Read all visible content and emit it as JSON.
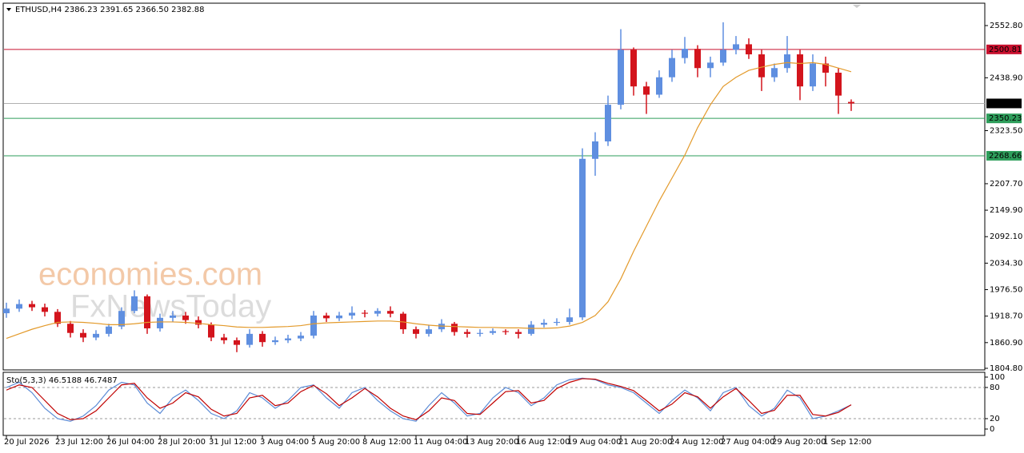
{
  "chart_data": [
    {
      "type": "candlestick",
      "title": "ETHUSD,H4  2386.23 2391.65 2366.50 2382.88",
      "watermark": [
        "economies.com",
        "FxNewsToday"
      ],
      "categories": [
        "20 Jul 2026",
        null,
        null,
        null,
        "23 Jul 12:00",
        null,
        null,
        null,
        "26 Jul 04:00",
        null,
        null,
        null,
        "28 Jul 20:00",
        null,
        null,
        null,
        "31 Jul 12:00",
        null,
        null,
        null,
        "3 Aug 04:00",
        null,
        null,
        null,
        "5 Aug 20:00",
        null,
        null,
        null,
        "8 Aug 12:00",
        null,
        null,
        null,
        "11 Aug 04:00",
        null,
        null,
        null,
        "13 Aug 20:00",
        null,
        null,
        null,
        "16 Aug 12:00",
        null,
        null,
        null,
        "19 Aug 04:00",
        null,
        null,
        null,
        "21 Aug 20:00",
        null,
        null,
        null,
        "24 Aug 12:00",
        null,
        null,
        null,
        "27 Aug 04:00",
        null,
        null,
        null,
        "29 Aug 20:00",
        null,
        null,
        null,
        "1 Sep 12:00",
        null,
        null
      ],
      "open": [
        1925,
        1935,
        1945,
        1938,
        1928,
        1902,
        1882,
        1872,
        1880,
        1896,
        1930,
        1962,
        1892,
        1915,
        1920,
        1910,
        1900,
        1872,
        1866,
        1856,
        1880,
        1862,
        1866,
        1870,
        1876,
        1920,
        1914,
        1920,
        1926,
        1924,
        1930,
        1924,
        1890,
        1880,
        1890,
        1902,
        1884,
        1880,
        1882,
        1886,
        1884,
        1880,
        1900,
        1904,
        1906,
        1916,
        2262,
        2300,
        2380,
        2500,
        2420,
        2402,
        2440,
        2482,
        2502,
        2460,
        2472,
        2500,
        2512,
        2490,
        2440,
        2460,
        2490,
        2420,
        2470,
        2450,
        2386.23
      ],
      "high": [
        1948,
        1955,
        1952,
        1946,
        1934,
        1908,
        1890,
        1888,
        1902,
        1938,
        1975,
        1966,
        1924,
        1930,
        1928,
        1918,
        1905,
        1880,
        1872,
        1890,
        1886,
        1874,
        1878,
        1884,
        1930,
        1926,
        1928,
        1940,
        1932,
        1936,
        1940,
        1928,
        1896,
        1900,
        1912,
        1906,
        1890,
        1890,
        1892,
        1890,
        1890,
        1908,
        1912,
        1914,
        1935,
        2285,
        2320,
        2400,
        2545,
        2505,
        2430,
        2455,
        2500,
        2528,
        2510,
        2485,
        2560,
        2530,
        2525,
        2500,
        2470,
        2530,
        2500,
        2490,
        2485,
        2460,
        2391.65
      ],
      "low": [
        1915,
        1928,
        1930,
        1918,
        1895,
        1872,
        1862,
        1866,
        1874,
        1890,
        1925,
        1880,
        1885,
        1906,
        1902,
        1892,
        1864,
        1858,
        1840,
        1850,
        1852,
        1856,
        1860,
        1864,
        1870,
        1906,
        1908,
        1912,
        1916,
        1918,
        1916,
        1880,
        1870,
        1874,
        1884,
        1876,
        1872,
        1874,
        1878,
        1878,
        1870,
        1876,
        1894,
        1898,
        1900,
        1910,
        2225,
        2290,
        2370,
        2400,
        2360,
        2395,
        2430,
        2470,
        2440,
        2440,
        2465,
        2490,
        2480,
        2410,
        2430,
        2450,
        2390,
        2410,
        2420,
        2360,
        2366.5
      ],
      "close": [
        1935,
        1945,
        1938,
        1928,
        1902,
        1882,
        1872,
        1880,
        1896,
        1930,
        1962,
        1892,
        1915,
        1920,
        1910,
        1900,
        1872,
        1866,
        1856,
        1880,
        1862,
        1866,
        1870,
        1876,
        1920,
        1914,
        1920,
        1926,
        1924,
        1930,
        1924,
        1890,
        1880,
        1890,
        1902,
        1884,
        1880,
        1882,
        1886,
        1884,
        1880,
        1900,
        1904,
        1906,
        1916,
        2262,
        2300,
        2380,
        2500,
        2420,
        2402,
        2440,
        2482,
        2502,
        2460,
        2472,
        2500,
        2512,
        2490,
        2440,
        2460,
        2490,
        2420,
        2470,
        2450,
        2400,
        2382.88
      ],
      "up_color": "#5f8fe0",
      "down_color": "#d3141c",
      "series": [
        {
          "color": "#e39a2b",
          "values": [
            1870,
            1880,
            1890,
            1898,
            1905,
            1906,
            1905,
            1903,
            1900,
            1900,
            1902,
            1905,
            1906,
            1906,
            1905,
            1903,
            1900,
            1898,
            1895,
            1894,
            1894,
            1895,
            1896,
            1898,
            1902,
            1904,
            1905,
            1906,
            1907,
            1908,
            1908,
            1906,
            1902,
            1899,
            1897,
            1896,
            1895,
            1894,
            1894,
            1893,
            1893,
            1892,
            1892,
            1893,
            1897,
            1905,
            1920,
            1950,
            2000,
            2060,
            2115,
            2170,
            2220,
            2270,
            2330,
            2380,
            2420,
            2440,
            2455,
            2462,
            2468,
            2472,
            2470,
            2472,
            2468,
            2460,
            2452
          ]
        }
      ],
      "levels": [
        {
          "value": 2500.81,
          "color": "#c8102e"
        },
        {
          "value": 2382.88,
          "color": "#000000"
        },
        {
          "value": 2350.23,
          "color": "#2e9e5b"
        },
        {
          "value": 2268.66,
          "color": "#2e9e5b"
        }
      ],
      "ylim": [
        1801.3,
        2599.9
      ],
      "yticks": [
        {
          "value": 2552.8,
          "label": "2552.80"
        },
        {
          "value": 2438.9,
          "label": "2438.90"
        },
        {
          "value": 2323.5,
          "label": "2323.50"
        },
        {
          "value": 2207.7,
          "label": "2207.70"
        },
        {
          "value": 2149.9,
          "label": "2149.90"
        },
        {
          "value": 2092.1,
          "label": "2092.10"
        },
        {
          "value": 2034.3,
          "label": "2034.30"
        },
        {
          "value": 1976.5,
          "label": "1976.50"
        },
        {
          "value": 1918.7,
          "label": "1918.70"
        },
        {
          "value": 1860.9,
          "label": "1860.90"
        },
        {
          "value": 1804.8,
          "label": "1804.80"
        }
      ]
    },
    {
      "type": "line",
      "title": "Sto(5,3,3) 46.5188 46.7487",
      "series": [
        {
          "color": "#5b8bd6",
          "values": [
            80,
            90,
            70,
            40,
            20,
            15,
            25,
            45,
            75,
            90,
            85,
            50,
            30,
            60,
            75,
            55,
            30,
            20,
            35,
            70,
            60,
            40,
            55,
            80,
            85,
            60,
            40,
            70,
            80,
            55,
            35,
            20,
            15,
            45,
            70,
            50,
            25,
            30,
            60,
            80,
            70,
            45,
            60,
            85,
            95,
            98,
            95,
            85,
            80,
            70,
            50,
            30,
            55,
            75,
            60,
            35,
            70,
            80,
            45,
            25,
            40,
            75,
            60,
            20,
            25,
            35,
            46.5188
          ]
        },
        {
          "color": "#c00000",
          "values": [
            75,
            85,
            80,
            55,
            30,
            18,
            20,
            35,
            60,
            85,
            88,
            60,
            40,
            50,
            70,
            62,
            38,
            25,
            30,
            60,
            65,
            45,
            50,
            72,
            84,
            68,
            45,
            60,
            78,
            62,
            40,
            25,
            18,
            35,
            60,
            55,
            30,
            28,
            50,
            72,
            74,
            50,
            55,
            78,
            90,
            97,
            96,
            88,
            82,
            74,
            55,
            35,
            48,
            70,
            62,
            40,
            62,
            78,
            55,
            30,
            36,
            65,
            65,
            28,
            25,
            32,
            46.7487
          ]
        }
      ],
      "ylim": [
        0,
        100
      ],
      "yticks": [
        100,
        80,
        20,
        0
      ]
    }
  ]
}
